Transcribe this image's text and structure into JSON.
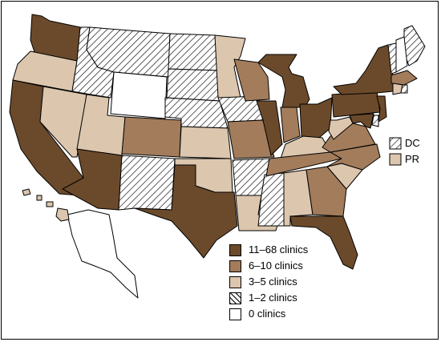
{
  "colors": {
    "dark": "#6b4a2b",
    "medium": "#a27c5b",
    "light": "#dcc6ae",
    "hatched": "hatch",
    "none": "#ffffff"
  },
  "insets": {
    "dc_label": "DC",
    "pr_label": "PR",
    "dc_fill": "hatched",
    "pr_fill": "light"
  },
  "legend": [
    {
      "label": "11–68 clinics",
      "fill": "dark"
    },
    {
      "label": "6–10 clinics",
      "fill": "medium"
    },
    {
      "label": "3–5 clinics",
      "fill": "light"
    },
    {
      "label": "1–2 clinics",
      "fill": "hatched"
    },
    {
      "label": "0 clinics",
      "fill": "none"
    }
  ],
  "states": {
    "WA": "dark",
    "OR": "light",
    "CA": "dark",
    "ID": "hatched",
    "NV": "light",
    "AZ": "dark",
    "UT": "light",
    "MT": "hatched",
    "WY": "none",
    "CO": "medium",
    "NM": "hatched",
    "ND": "hatched",
    "SD": "hatched",
    "NE": "hatched",
    "KS": "light",
    "OK": "light",
    "TX": "dark",
    "MN": "light",
    "IA": "hatched",
    "MO": "medium",
    "AR": "hatched",
    "LA": "light",
    "WI": "medium",
    "IL": "dark",
    "MS": "hatched",
    "MI": "dark",
    "IN": "medium",
    "KY": "light",
    "TN": "medium",
    "AL": "light",
    "OH": "dark",
    "GA": "medium",
    "FL": "dark",
    "SC": "light",
    "NC": "medium",
    "VA": "medium",
    "WV": "light",
    "PA": "dark",
    "NY": "dark",
    "ME": "hatched",
    "VT": "hatched",
    "NH": "none",
    "MA": "medium",
    "RI": "hatched",
    "CT": "light",
    "NJ": "dark",
    "DE": "hatched",
    "MD": "dark",
    "AK": "none",
    "HI": "light"
  }
}
